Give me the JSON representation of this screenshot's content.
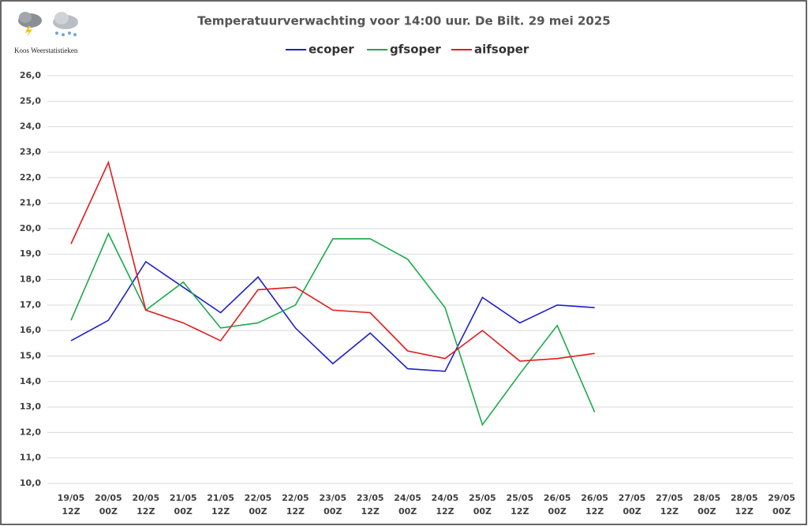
{
  "chart_data": {
    "type": "line",
    "title": "Temperatuurverwachting voor 14:00 uur. De Bilt. 29 mei 2025",
    "watermark": "Koos Weerstatistieken",
    "categories": [
      [
        "19/05",
        "12Z"
      ],
      [
        "20/05",
        "00Z"
      ],
      [
        "20/05",
        "12Z"
      ],
      [
        "21/05",
        "00Z"
      ],
      [
        "21/05",
        "12Z"
      ],
      [
        "22/05",
        "00Z"
      ],
      [
        "22/05",
        "12Z"
      ],
      [
        "23/05",
        "00Z"
      ],
      [
        "23/05",
        "12Z"
      ],
      [
        "24/05",
        "00Z"
      ],
      [
        "24/05",
        "12Z"
      ],
      [
        "25/05",
        "00Z"
      ],
      [
        "25/05",
        "12Z"
      ],
      [
        "26/05",
        "00Z"
      ],
      [
        "26/05",
        "12Z"
      ],
      [
        "27/05",
        "00Z"
      ],
      [
        "27/05",
        "12Z"
      ],
      [
        "28/05",
        "00Z"
      ],
      [
        "28/05",
        "12Z"
      ],
      [
        "29/05",
        "00Z"
      ]
    ],
    "series": [
      {
        "name": "ecoper",
        "color": "#1f1fcc",
        "values": [
          15.6,
          16.4,
          18.7,
          17.7,
          16.7,
          18.1,
          16.1,
          14.7,
          15.9,
          14.5,
          14.4,
          17.3,
          16.3,
          17.0,
          16.9,
          null,
          null,
          null,
          null,
          null
        ]
      },
      {
        "name": "gfsoper",
        "color": "#1aaa4a",
        "values": [
          16.4,
          19.8,
          16.8,
          17.9,
          16.1,
          16.3,
          17.0,
          19.6,
          19.6,
          18.8,
          16.9,
          12.3,
          14.3,
          16.2,
          12.8,
          null,
          null,
          null,
          null,
          null
        ]
      },
      {
        "name": "aifsoper",
        "color": "#e01b1b",
        "values": [
          19.4,
          22.6,
          16.8,
          16.3,
          15.6,
          17.6,
          17.7,
          16.8,
          16.7,
          15.2,
          14.9,
          16.0,
          14.8,
          14.9,
          15.1,
          null,
          null,
          null,
          null,
          null
        ]
      }
    ],
    "ylim": [
      10,
      26
    ],
    "yticks": [
      {
        "value": 10,
        "label": "10,0"
      },
      {
        "value": 11,
        "label": "11,0"
      },
      {
        "value": 12,
        "label": "12,0"
      },
      {
        "value": 13,
        "label": "13,0"
      },
      {
        "value": 14,
        "label": "14,0"
      },
      {
        "value": 15,
        "label": "15,0"
      },
      {
        "value": 16,
        "label": "16,0"
      },
      {
        "value": 17,
        "label": "17,0"
      },
      {
        "value": 18,
        "label": "18,0"
      },
      {
        "value": 19,
        "label": "19,0"
      },
      {
        "value": 20,
        "label": "20,0"
      },
      {
        "value": 21,
        "label": "21,0"
      },
      {
        "value": 22,
        "label": "22,0"
      },
      {
        "value": 23,
        "label": "23,0"
      },
      {
        "value": 24,
        "label": "24,0"
      },
      {
        "value": 25,
        "label": "25,0"
      },
      {
        "value": 26,
        "label": "26,0"
      }
    ],
    "grid": true,
    "legend": "top"
  }
}
